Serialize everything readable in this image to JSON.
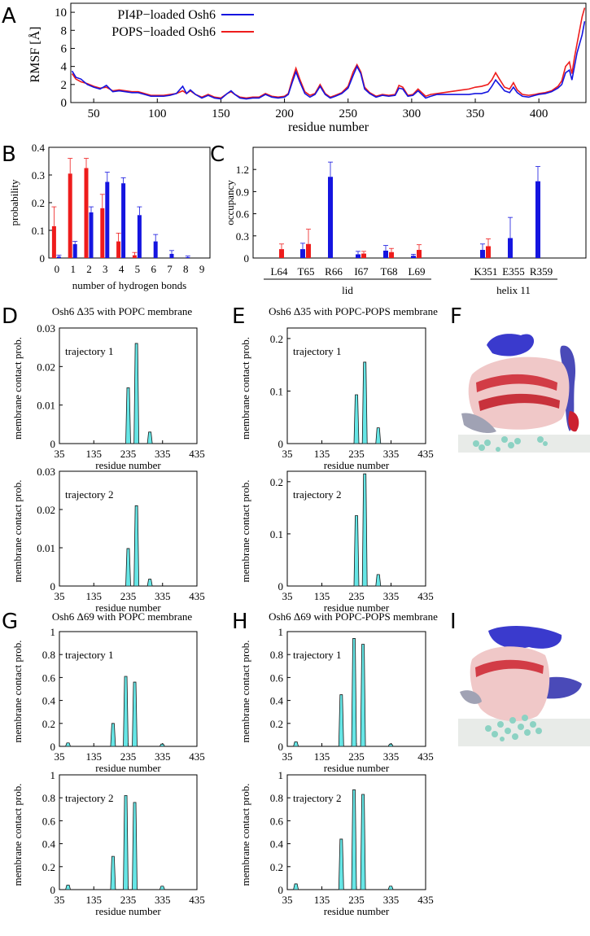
{
  "panels": {
    "A": "A",
    "B": "B",
    "C": "C",
    "D": "D",
    "E": "E",
    "F": "F",
    "G": "G",
    "H": "H",
    "I": "I"
  },
  "colors": {
    "blue": "#1515e0",
    "red": "#ee1c1c",
    "cyan": "#66e6e6",
    "struct_blue": "#3a3acd",
    "struct_red": "#d23c46",
    "struct_pink": "#f0c8c8",
    "struct_gray": "#a0a2b4",
    "membrane": "#e8ebe8",
    "lipid": "#8cd2c3"
  },
  "chart_data": [
    {
      "id": "A",
      "type": "line",
      "xlabel": "residue number",
      "ylabel": "RMSF [Å]",
      "xlim": [
        32,
        437
      ],
      "ylim": [
        0,
        11
      ],
      "xticks": [
        50,
        100,
        150,
        200,
        250,
        300,
        350,
        400
      ],
      "yticks": [
        0,
        2,
        4,
        6,
        8,
        10
      ],
      "legend": [
        "PI4P−loaded Osh6",
        "POPS−loaded Osh6"
      ],
      "series": [
        {
          "name": "PI4P−loaded Osh6",
          "color": "#1515e0",
          "x": [
            33,
            36,
            40,
            45,
            50,
            55,
            60,
            65,
            70,
            75,
            80,
            85,
            90,
            95,
            100,
            105,
            110,
            115,
            120,
            123,
            126,
            130,
            135,
            140,
            145,
            150,
            155,
            158,
            161,
            165,
            170,
            175,
            180,
            185,
            190,
            195,
            200,
            203,
            206,
            209,
            212,
            216,
            220,
            224,
            228,
            232,
            236,
            240,
            245,
            250,
            254,
            257,
            260,
            263,
            267,
            272,
            277,
            282,
            287,
            290,
            293,
            297,
            301,
            305,
            308,
            311,
            315,
            320,
            325,
            330,
            335,
            340,
            345,
            350,
            355,
            360,
            363,
            366,
            369,
            373,
            377,
            380,
            383,
            387,
            392,
            397,
            400,
            405,
            410,
            415,
            418,
            421,
            424,
            426,
            428,
            430,
            432,
            434,
            436
          ],
          "y": [
            3.5,
            2.8,
            2.6,
            2.0,
            1.7,
            1.5,
            1.9,
            1.2,
            1.3,
            1.2,
            1.1,
            1.1,
            0.9,
            0.7,
            0.7,
            0.7,
            0.8,
            1.0,
            1.8,
            1.0,
            1.4,
            0.9,
            0.5,
            0.8,
            0.5,
            0.4,
            1.0,
            1.3,
            0.9,
            0.5,
            0.4,
            0.5,
            0.5,
            0.9,
            0.6,
            0.5,
            0.6,
            0.9,
            2.2,
            3.4,
            2.3,
            1.0,
            0.6,
            0.9,
            1.8,
            0.9,
            0.5,
            0.7,
            1.0,
            1.6,
            3.0,
            4.0,
            3.2,
            1.5,
            1.0,
            0.6,
            0.8,
            0.7,
            0.8,
            1.6,
            1.5,
            0.7,
            0.8,
            1.3,
            0.9,
            0.5,
            0.7,
            0.9,
            0.9,
            0.9,
            0.9,
            0.9,
            0.9,
            1.0,
            1.0,
            1.2,
            1.8,
            2.5,
            2.0,
            1.3,
            1.1,
            1.7,
            1.1,
            0.7,
            0.6,
            0.8,
            0.9,
            1.0,
            1.2,
            1.6,
            2.0,
            3.3,
            3.6,
            2.5,
            4.0,
            5.5,
            6.5,
            7.5,
            9.0
          ]
        },
        {
          "name": "POPS−loaded Osh6",
          "color": "#ee1c1c",
          "x": [
            33,
            36,
            40,
            45,
            50,
            55,
            60,
            65,
            70,
            75,
            80,
            85,
            90,
            95,
            100,
            105,
            110,
            115,
            120,
            123,
            126,
            130,
            135,
            140,
            145,
            150,
            155,
            158,
            161,
            165,
            170,
            175,
            180,
            185,
            190,
            195,
            200,
            203,
            206,
            209,
            212,
            216,
            220,
            224,
            228,
            232,
            236,
            240,
            245,
            250,
            254,
            257,
            260,
            263,
            267,
            272,
            277,
            282,
            287,
            290,
            293,
            297,
            301,
            305,
            308,
            311,
            315,
            320,
            325,
            330,
            335,
            340,
            345,
            350,
            355,
            360,
            363,
            366,
            369,
            373,
            377,
            380,
            383,
            387,
            392,
            397,
            400,
            405,
            410,
            415,
            418,
            421,
            424,
            426,
            428,
            430,
            432,
            434,
            436
          ],
          "y": [
            3.2,
            2.6,
            2.3,
            2.1,
            1.8,
            1.6,
            1.7,
            1.3,
            1.4,
            1.3,
            1.2,
            1.2,
            1.0,
            0.8,
            0.8,
            0.8,
            0.9,
            1.0,
            1.3,
            1.0,
            1.3,
            0.9,
            0.6,
            0.9,
            0.6,
            0.5,
            1.0,
            1.2,
            0.9,
            0.6,
            0.5,
            0.6,
            0.6,
            1.0,
            0.7,
            0.6,
            0.7,
            1.0,
            2.5,
            3.8,
            2.6,
            1.2,
            0.8,
            1.0,
            2.0,
            1.0,
            0.6,
            0.8,
            1.1,
            1.8,
            3.4,
            4.2,
            3.4,
            1.7,
            1.1,
            0.7,
            0.9,
            0.8,
            0.9,
            1.9,
            1.7,
            0.8,
            0.9,
            1.5,
            1.1,
            0.7,
            0.9,
            1.0,
            1.1,
            1.2,
            1.3,
            1.4,
            1.5,
            1.7,
            1.8,
            2.0,
            2.5,
            3.3,
            2.6,
            1.7,
            1.5,
            2.2,
            1.4,
            0.9,
            0.8,
            0.9,
            1.0,
            1.1,
            1.3,
            1.8,
            2.4,
            4.0,
            4.5,
            3.2,
            5.0,
            6.5,
            8.0,
            9.5,
            10.5
          ]
        }
      ]
    },
    {
      "id": "B",
      "type": "bar",
      "xlabel": "number of hydrogen bonds",
      "ylabel": "probability",
      "ylim": [
        0,
        0.4
      ],
      "yticks": [
        "0",
        "0.1",
        "0.2",
        "0.3",
        "0.4"
      ],
      "categories": [
        "0",
        "1",
        "2",
        "3",
        "4",
        "5",
        "6",
        "7",
        "8",
        "9"
      ],
      "series": [
        {
          "name": "POPS−loaded Osh6",
          "color": "#ee1c1c",
          "values": [
            0.115,
            0.305,
            0.325,
            0.18,
            0.06,
            0.01,
            0,
            0,
            0,
            0
          ],
          "errors": [
            0.07,
            0.055,
            0.035,
            0.05,
            0.03,
            0.01,
            0,
            0,
            0,
            0
          ]
        },
        {
          "name": "PI4P−loaded Osh6",
          "color": "#1515e0",
          "values": [
            0.005,
            0.05,
            0.165,
            0.275,
            0.27,
            0.155,
            0.06,
            0.015,
            0.003,
            0
          ],
          "errors": [
            0.005,
            0.01,
            0.02,
            0.035,
            0.02,
            0.03,
            0.025,
            0.012,
            0.004,
            0
          ]
        }
      ]
    },
    {
      "id": "C",
      "type": "bar",
      "ylabel": "occupancy",
      "ylim": [
        0,
        1.5
      ],
      "yticks": [
        "0",
        "0.3",
        "0.6",
        "0.9",
        "1.2"
      ],
      "categories": [
        "L64",
        "T65",
        "R66",
        "I67",
        "T68",
        "L69",
        "K351",
        "E355",
        "R359"
      ],
      "groups": [
        {
          "label": "lid",
          "from": "L64",
          "to": "L69"
        },
        {
          "label": "helix 11",
          "from": "K351",
          "to": "R359"
        }
      ],
      "series": [
        {
          "name": "PI4P−loaded Osh6",
          "color": "#1515e0",
          "values": [
            0,
            0.12,
            1.1,
            0.05,
            0.1,
            0.03,
            0.11,
            0.27,
            1.04
          ],
          "errors": [
            0,
            0.08,
            0.2,
            0.04,
            0.07,
            0.02,
            0.08,
            0.28,
            0.2
          ]
        },
        {
          "name": "POPS−loaded Osh6",
          "color": "#ee1c1c",
          "values": [
            0.12,
            0.19,
            0,
            0.06,
            0.08,
            0.11,
            0.16,
            0,
            0
          ],
          "errors": [
            0.07,
            0.2,
            0,
            0.03,
            0.05,
            0.07,
            0.1,
            0,
            0
          ]
        }
      ]
    },
    {
      "id": "D",
      "type": "area",
      "title": "Osh6 Δ35 with POPC membrane",
      "xlabel": "residue number",
      "ylabel": "membrane contact prob.",
      "xlim": [
        35,
        435
      ],
      "xticks": [
        35,
        135,
        235,
        335,
        435
      ],
      "subplots": [
        {
          "label": "trajectory 1",
          "ylim": [
            0,
            0.03
          ],
          "yticks": [
            "0",
            "0.01",
            "0.02",
            "0.03"
          ],
          "peaks": [
            [
              235,
              0.0145
            ],
            [
              259,
              0.026
            ],
            [
              298,
              0.003
            ]
          ]
        },
        {
          "label": "trajectory 2",
          "ylim": [
            0,
            0.03
          ],
          "yticks": [
            "0",
            "0.01",
            "0.02",
            "0.03"
          ],
          "peaks": [
            [
              235,
              0.0098
            ],
            [
              259,
              0.021
            ],
            [
              298,
              0.0018
            ]
          ]
        }
      ]
    },
    {
      "id": "E",
      "type": "area",
      "title": "Osh6 Δ35 with POPC-POPS membrane",
      "xlabel": "residue number",
      "ylabel": "membrane contact prob.",
      "xlim": [
        35,
        435
      ],
      "xticks": [
        35,
        135,
        235,
        335,
        435
      ],
      "subplots": [
        {
          "label": "trajectory 1",
          "ylim": [
            0,
            0.22
          ],
          "yticks": [
            "0",
            "0.1",
            "0.2"
          ],
          "peaks": [
            [
              235,
              0.093
            ],
            [
              259,
              0.155
            ],
            [
              298,
              0.03
            ]
          ]
        },
        {
          "label": "trajectory 2",
          "ylim": [
            0,
            0.22
          ],
          "yticks": [
            "0",
            "0.1",
            "0.2"
          ],
          "peaks": [
            [
              235,
              0.135
            ],
            [
              259,
              0.215
            ],
            [
              298,
              0.022
            ]
          ]
        }
      ]
    },
    {
      "id": "G",
      "type": "area",
      "title": "Osh6 Δ69 with POPC membrane",
      "xlabel": "residue number",
      "ylabel": "membrane contact prob.",
      "xlim": [
        35,
        435
      ],
      "xticks": [
        35,
        135,
        235,
        335,
        435
      ],
      "subplots": [
        {
          "label": "trajectory 1",
          "ylim": [
            0,
            1
          ],
          "yticks": [
            "0",
            "0.2",
            "0.4",
            "0.6",
            "0.8",
            "1"
          ],
          "peaks": [
            [
              60,
              0.03
            ],
            [
              191,
              0.2
            ],
            [
              228,
              0.61
            ],
            [
              254,
              0.56
            ],
            [
              334,
              0.02
            ]
          ]
        },
        {
          "label": "trajectory 2",
          "ylim": [
            0,
            1
          ],
          "yticks": [
            "0",
            "0.2",
            "0.4",
            "0.6",
            "0.8",
            "1"
          ],
          "peaks": [
            [
              60,
              0.04
            ],
            [
              191,
              0.29
            ],
            [
              228,
              0.82
            ],
            [
              254,
              0.76
            ],
            [
              334,
              0.03
            ]
          ]
        }
      ]
    },
    {
      "id": "H",
      "type": "area",
      "title": "Osh6 Δ69 with POPC-POPS membrane",
      "xlabel": "residue number",
      "ylabel": "membrane contact prob.",
      "xlim": [
        35,
        435
      ],
      "xticks": [
        35,
        135,
        235,
        335,
        435
      ],
      "subplots": [
        {
          "label": "trajectory 1",
          "ylim": [
            0,
            1
          ],
          "yticks": [
            "0",
            "0.2",
            "0.4",
            "0.6",
            "0.8",
            "1"
          ],
          "peaks": [
            [
              60,
              0.04
            ],
            [
              191,
              0.45
            ],
            [
              228,
              0.94
            ],
            [
              254,
              0.89
            ],
            [
              334,
              0.02
            ]
          ]
        },
        {
          "label": "trajectory 2",
          "ylim": [
            0,
            1
          ],
          "yticks": [
            "0",
            "0.2",
            "0.4",
            "0.6",
            "0.8",
            "1"
          ],
          "peaks": [
            [
              60,
              0.05
            ],
            [
              191,
              0.44
            ],
            [
              228,
              0.87
            ],
            [
              254,
              0.83
            ],
            [
              334,
              0.03
            ]
          ]
        }
      ]
    }
  ]
}
